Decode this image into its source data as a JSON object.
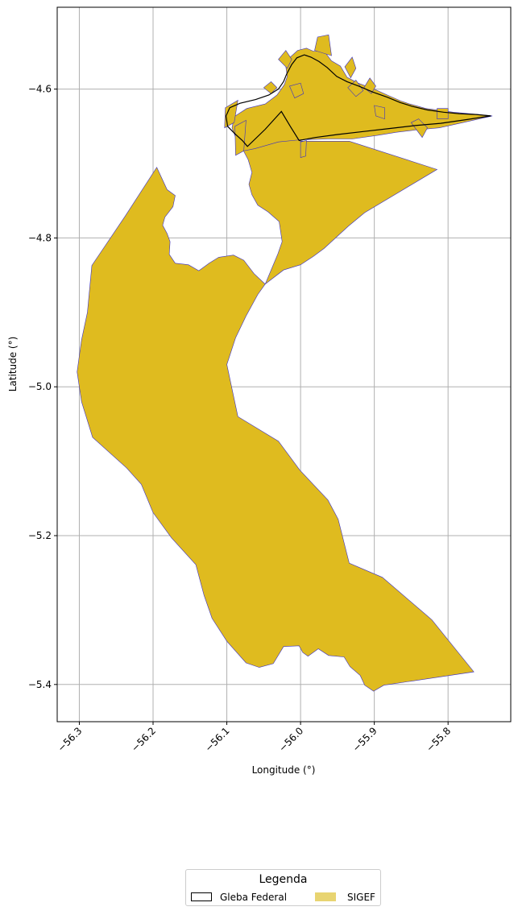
{
  "map": {
    "xlabel": "Longitude (°)",
    "ylabel": "Latitude (°)",
    "xlim": [
      -56.33,
      -55.715
    ],
    "ylim": [
      -5.45,
      -4.49
    ],
    "x_ticks": [
      -56.3,
      -56.2,
      -56.1,
      -56.0,
      -55.9,
      -55.8
    ],
    "x_tick_labels": [
      "−56.3",
      "−56.2",
      "−56.1",
      "−56.0",
      "−55.9",
      "−55.8"
    ],
    "y_ticks": [
      -4.6,
      -4.8,
      -5.0,
      -5.2,
      -5.4
    ],
    "y_tick_labels": [
      "−4.6",
      "−4.8",
      "−5.0",
      "−5.2",
      "−5.4"
    ],
    "grid": true,
    "colors": {
      "sigef_fill": "#dfbb1f",
      "sigef_edge": "#3a2fc4",
      "gleba_edge": "#000000",
      "grid": "#b0b0b0"
    },
    "layers": {
      "sigef_main": [
        [
          -56.195,
          -4.705
        ],
        [
          -56.181,
          -4.735
        ],
        [
          -56.17,
          -4.743
        ],
        [
          -56.173,
          -4.758
        ],
        [
          -56.184,
          -4.772
        ],
        [
          -56.187,
          -4.783
        ],
        [
          -56.181,
          -4.794
        ],
        [
          -56.177,
          -4.805
        ],
        [
          -56.178,
          -4.822
        ],
        [
          -56.17,
          -4.834
        ],
        [
          -56.152,
          -4.836
        ],
        [
          -56.138,
          -4.844
        ],
        [
          -56.124,
          -4.834
        ],
        [
          -56.111,
          -4.826
        ],
        [
          -56.091,
          -4.823
        ],
        [
          -56.077,
          -4.83
        ],
        [
          -56.063,
          -4.848
        ],
        [
          -56.048,
          -4.862
        ],
        [
          -56.023,
          -4.843
        ],
        [
          -56.0,
          -4.836
        ],
        [
          -55.983,
          -4.825
        ],
        [
          -55.968,
          -4.814
        ],
        [
          -55.935,
          -4.784
        ],
        [
          -55.913,
          -4.766
        ],
        [
          -55.815,
          -4.708
        ],
        [
          -55.934,
          -4.67
        ],
        [
          -56.0,
          -4.67
        ],
        [
          -56.015,
          -4.661
        ],
        [
          -56.033,
          -4.665
        ],
        [
          -56.063,
          -4.678
        ],
        [
          -56.074,
          -4.671
        ],
        [
          -56.081,
          -4.676
        ],
        [
          -56.071,
          -4.695
        ],
        [
          -56.066,
          -4.712
        ],
        [
          -56.07,
          -4.728
        ],
        [
          -56.066,
          -4.742
        ],
        [
          -56.058,
          -4.756
        ],
        [
          -56.044,
          -4.765
        ],
        [
          -56.029,
          -4.778
        ],
        [
          -56.025,
          -4.805
        ],
        [
          -56.031,
          -4.822
        ],
        [
          -56.048,
          -4.862
        ],
        [
          -56.058,
          -4.876
        ],
        [
          -56.074,
          -4.905
        ],
        [
          -56.088,
          -4.934
        ],
        [
          -56.1,
          -4.97
        ],
        [
          -56.085,
          -5.04
        ],
        [
          -56.03,
          -5.073
        ],
        [
          -56.001,
          -5.112
        ],
        [
          -55.963,
          -5.152
        ],
        [
          -55.949,
          -5.178
        ],
        [
          -55.934,
          -5.237
        ],
        [
          -55.889,
          -5.256
        ],
        [
          -55.822,
          -5.313
        ],
        [
          -55.765,
          -5.383
        ],
        [
          -55.887,
          -5.401
        ],
        [
          -55.901,
          -5.409
        ],
        [
          -55.913,
          -5.401
        ],
        [
          -55.919,
          -5.388
        ],
        [
          -55.933,
          -5.376
        ],
        [
          -55.941,
          -5.363
        ],
        [
          -55.962,
          -5.361
        ],
        [
          -55.976,
          -5.352
        ],
        [
          -55.99,
          -5.362
        ],
        [
          -55.997,
          -5.357
        ],
        [
          -56.002,
          -5.348
        ],
        [
          -56.023,
          -5.349
        ],
        [
          -56.037,
          -5.372
        ],
        [
          -56.056,
          -5.377
        ],
        [
          -56.074,
          -5.371
        ],
        [
          -56.1,
          -5.342
        ],
        [
          -56.12,
          -5.311
        ],
        [
          -56.131,
          -5.28
        ],
        [
          -56.142,
          -5.239
        ],
        [
          -56.175,
          -5.203
        ],
        [
          -56.2,
          -5.169
        ],
        [
          -56.216,
          -5.131
        ],
        [
          -56.236,
          -5.109
        ],
        [
          -56.282,
          -5.068
        ],
        [
          -56.297,
          -5.02
        ],
        [
          -56.303,
          -4.98
        ],
        [
          -56.297,
          -4.937
        ],
        [
          -56.289,
          -4.9
        ],
        [
          -56.283,
          -4.837
        ],
        [
          -56.238,
          -4.771
        ]
      ],
      "sigef_north": [
        [
          -56.082,
          -4.684
        ],
        [
          -56.087,
          -4.668
        ],
        [
          -56.093,
          -4.652
        ],
        [
          -56.09,
          -4.637
        ],
        [
          -56.073,
          -4.626
        ],
        [
          -56.048,
          -4.62
        ],
        [
          -56.032,
          -4.608
        ],
        [
          -56.022,
          -4.594
        ],
        [
          -56.018,
          -4.583
        ],
        [
          -56.02,
          -4.57
        ],
        [
          -56.014,
          -4.557
        ],
        [
          -56.004,
          -4.548
        ],
        [
          -55.992,
          -4.545
        ],
        [
          -55.983,
          -4.549
        ],
        [
          -55.968,
          -4.549
        ],
        [
          -55.958,
          -4.562
        ],
        [
          -55.946,
          -4.569
        ],
        [
          -55.937,
          -4.584
        ],
        [
          -55.922,
          -4.592
        ],
        [
          -55.9,
          -4.6
        ],
        [
          -55.88,
          -4.609
        ],
        [
          -55.864,
          -4.616
        ],
        [
          -55.852,
          -4.62
        ],
        [
          -55.83,
          -4.626
        ],
        [
          -55.808,
          -4.629
        ],
        [
          -55.793,
          -4.631
        ],
        [
          -55.772,
          -4.633
        ],
        [
          -55.74,
          -4.636
        ],
        [
          -55.78,
          -4.645
        ],
        [
          -55.812,
          -4.652
        ],
        [
          -55.845,
          -4.655
        ],
        [
          -55.87,
          -4.658
        ],
        [
          -55.895,
          -4.662
        ],
        [
          -55.93,
          -4.667
        ],
        [
          -55.963,
          -4.667
        ],
        [
          -56.0,
          -4.668
        ],
        [
          -56.03,
          -4.671
        ],
        [
          -56.062,
          -4.68
        ]
      ],
      "gleba_federal": [
        [
          -56.072,
          -4.677
        ],
        [
          -56.079,
          -4.669
        ],
        [
          -56.089,
          -4.66
        ],
        [
          -56.099,
          -4.65
        ],
        [
          -56.101,
          -4.636
        ],
        [
          -56.096,
          -4.625
        ],
        [
          -56.082,
          -4.619
        ],
        [
          -56.061,
          -4.614
        ],
        [
          -56.043,
          -4.608
        ],
        [
          -56.03,
          -4.6
        ],
        [
          -56.023,
          -4.59
        ],
        [
          -56.019,
          -4.58
        ],
        [
          -56.012,
          -4.567
        ],
        [
          -56.005,
          -4.558
        ],
        [
          -55.995,
          -4.554
        ],
        [
          -55.986,
          -4.557
        ],
        [
          -55.975,
          -4.563
        ],
        [
          -55.964,
          -4.571
        ],
        [
          -55.951,
          -4.583
        ],
        [
          -55.937,
          -4.59
        ],
        [
          -55.921,
          -4.596
        ],
        [
          -55.902,
          -4.604
        ],
        [
          -55.882,
          -4.611
        ],
        [
          -55.865,
          -4.618
        ],
        [
          -55.849,
          -4.623
        ],
        [
          -55.828,
          -4.628
        ],
        [
          -55.806,
          -4.631
        ],
        [
          -55.785,
          -4.633
        ],
        [
          -55.762,
          -4.634
        ],
        [
          -55.742,
          -4.636
        ],
        [
          -55.775,
          -4.641
        ],
        [
          -55.81,
          -4.646
        ],
        [
          -55.845,
          -4.649
        ],
        [
          -55.88,
          -4.653
        ],
        [
          -55.915,
          -4.657
        ],
        [
          -55.95,
          -4.661
        ],
        [
          -55.98,
          -4.665
        ],
        [
          -56.002,
          -4.669
        ],
        [
          -56.014,
          -4.65
        ],
        [
          -56.026,
          -4.63
        ],
        [
          -56.048,
          -4.654
        ]
      ],
      "sigef_small": [
        [
          [
            -56.102,
            -4.625
          ],
          [
            -56.085,
            -4.615
          ],
          [
            -56.09,
            -4.645
          ],
          [
            -56.103,
            -4.652
          ]
        ],
        [
          [
            -56.089,
            -4.65
          ],
          [
            -56.074,
            -4.642
          ],
          [
            -56.077,
            -4.683
          ],
          [
            -56.088,
            -4.689
          ]
        ],
        [
          [
            -56.0,
            -4.671
          ],
          [
            -55.992,
            -4.669
          ],
          [
            -55.993,
            -4.69
          ],
          [
            -56.0,
            -4.692
          ]
        ],
        [
          [
            -55.981,
            -4.548
          ],
          [
            -55.977,
            -4.53
          ],
          [
            -55.962,
            -4.527
          ],
          [
            -55.958,
            -4.555
          ]
        ],
        [
          [
            -56.03,
            -4.56
          ],
          [
            -56.02,
            -4.548
          ],
          [
            -56.012,
            -4.56
          ],
          [
            -56.018,
            -4.572
          ]
        ],
        [
          [
            -55.94,
            -4.57
          ],
          [
            -55.93,
            -4.557
          ],
          [
            -55.925,
            -4.572
          ],
          [
            -55.932,
            -4.585
          ]
        ],
        [
          [
            -55.936,
            -4.598
          ],
          [
            -55.925,
            -4.588
          ],
          [
            -55.915,
            -4.602
          ],
          [
            -55.925,
            -4.61
          ]
        ],
        [
          [
            -55.914,
            -4.598
          ],
          [
            -55.906,
            -4.585
          ],
          [
            -55.898,
            -4.596
          ],
          [
            -55.904,
            -4.606
          ]
        ],
        [
          [
            -55.9,
            -4.622
          ],
          [
            -55.898,
            -4.636
          ],
          [
            -55.886,
            -4.64
          ],
          [
            -55.886,
            -4.625
          ]
        ],
        [
          [
            -55.85,
            -4.645
          ],
          [
            -55.84,
            -4.64
          ],
          [
            -55.828,
            -4.652
          ],
          [
            -55.835,
            -4.665
          ]
        ],
        [
          [
            -55.815,
            -4.626
          ],
          [
            -55.8,
            -4.626
          ],
          [
            -55.8,
            -4.64
          ],
          [
            -55.815,
            -4.64
          ]
        ],
        [
          [
            -56.05,
            -4.598
          ],
          [
            -56.04,
            -4.59
          ],
          [
            -56.032,
            -4.598
          ],
          [
            -56.04,
            -4.606
          ]
        ],
        [
          [
            -56.015,
            -4.596
          ],
          [
            -56.0,
            -4.592
          ],
          [
            -55.996,
            -4.606
          ],
          [
            -56.008,
            -4.612
          ]
        ]
      ]
    }
  },
  "legend": {
    "title": "Legenda",
    "items": [
      {
        "label": "Gleba Federal",
        "style": "outline"
      },
      {
        "label": "SIGEF",
        "style": "fill"
      }
    ]
  }
}
